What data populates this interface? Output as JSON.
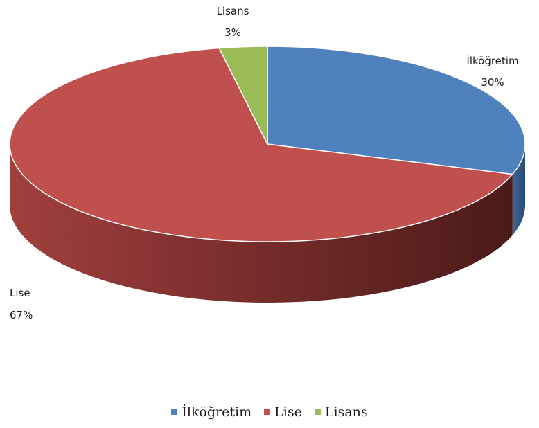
{
  "chart_data": {
    "type": "pie",
    "title": "",
    "slices": [
      {
        "label": "İlköğretim",
        "value": 30,
        "value_label": "30%",
        "color": "#4F81BD"
      },
      {
        "label": "Lise",
        "value": 67,
        "value_label": "67%",
        "color": "#C0504D"
      },
      {
        "label": "Lisans",
        "value": 3,
        "value_label": "3%",
        "color": "#9BBB59"
      }
    ],
    "legend": {
      "position": "bottom"
    },
    "style": "3d"
  }
}
